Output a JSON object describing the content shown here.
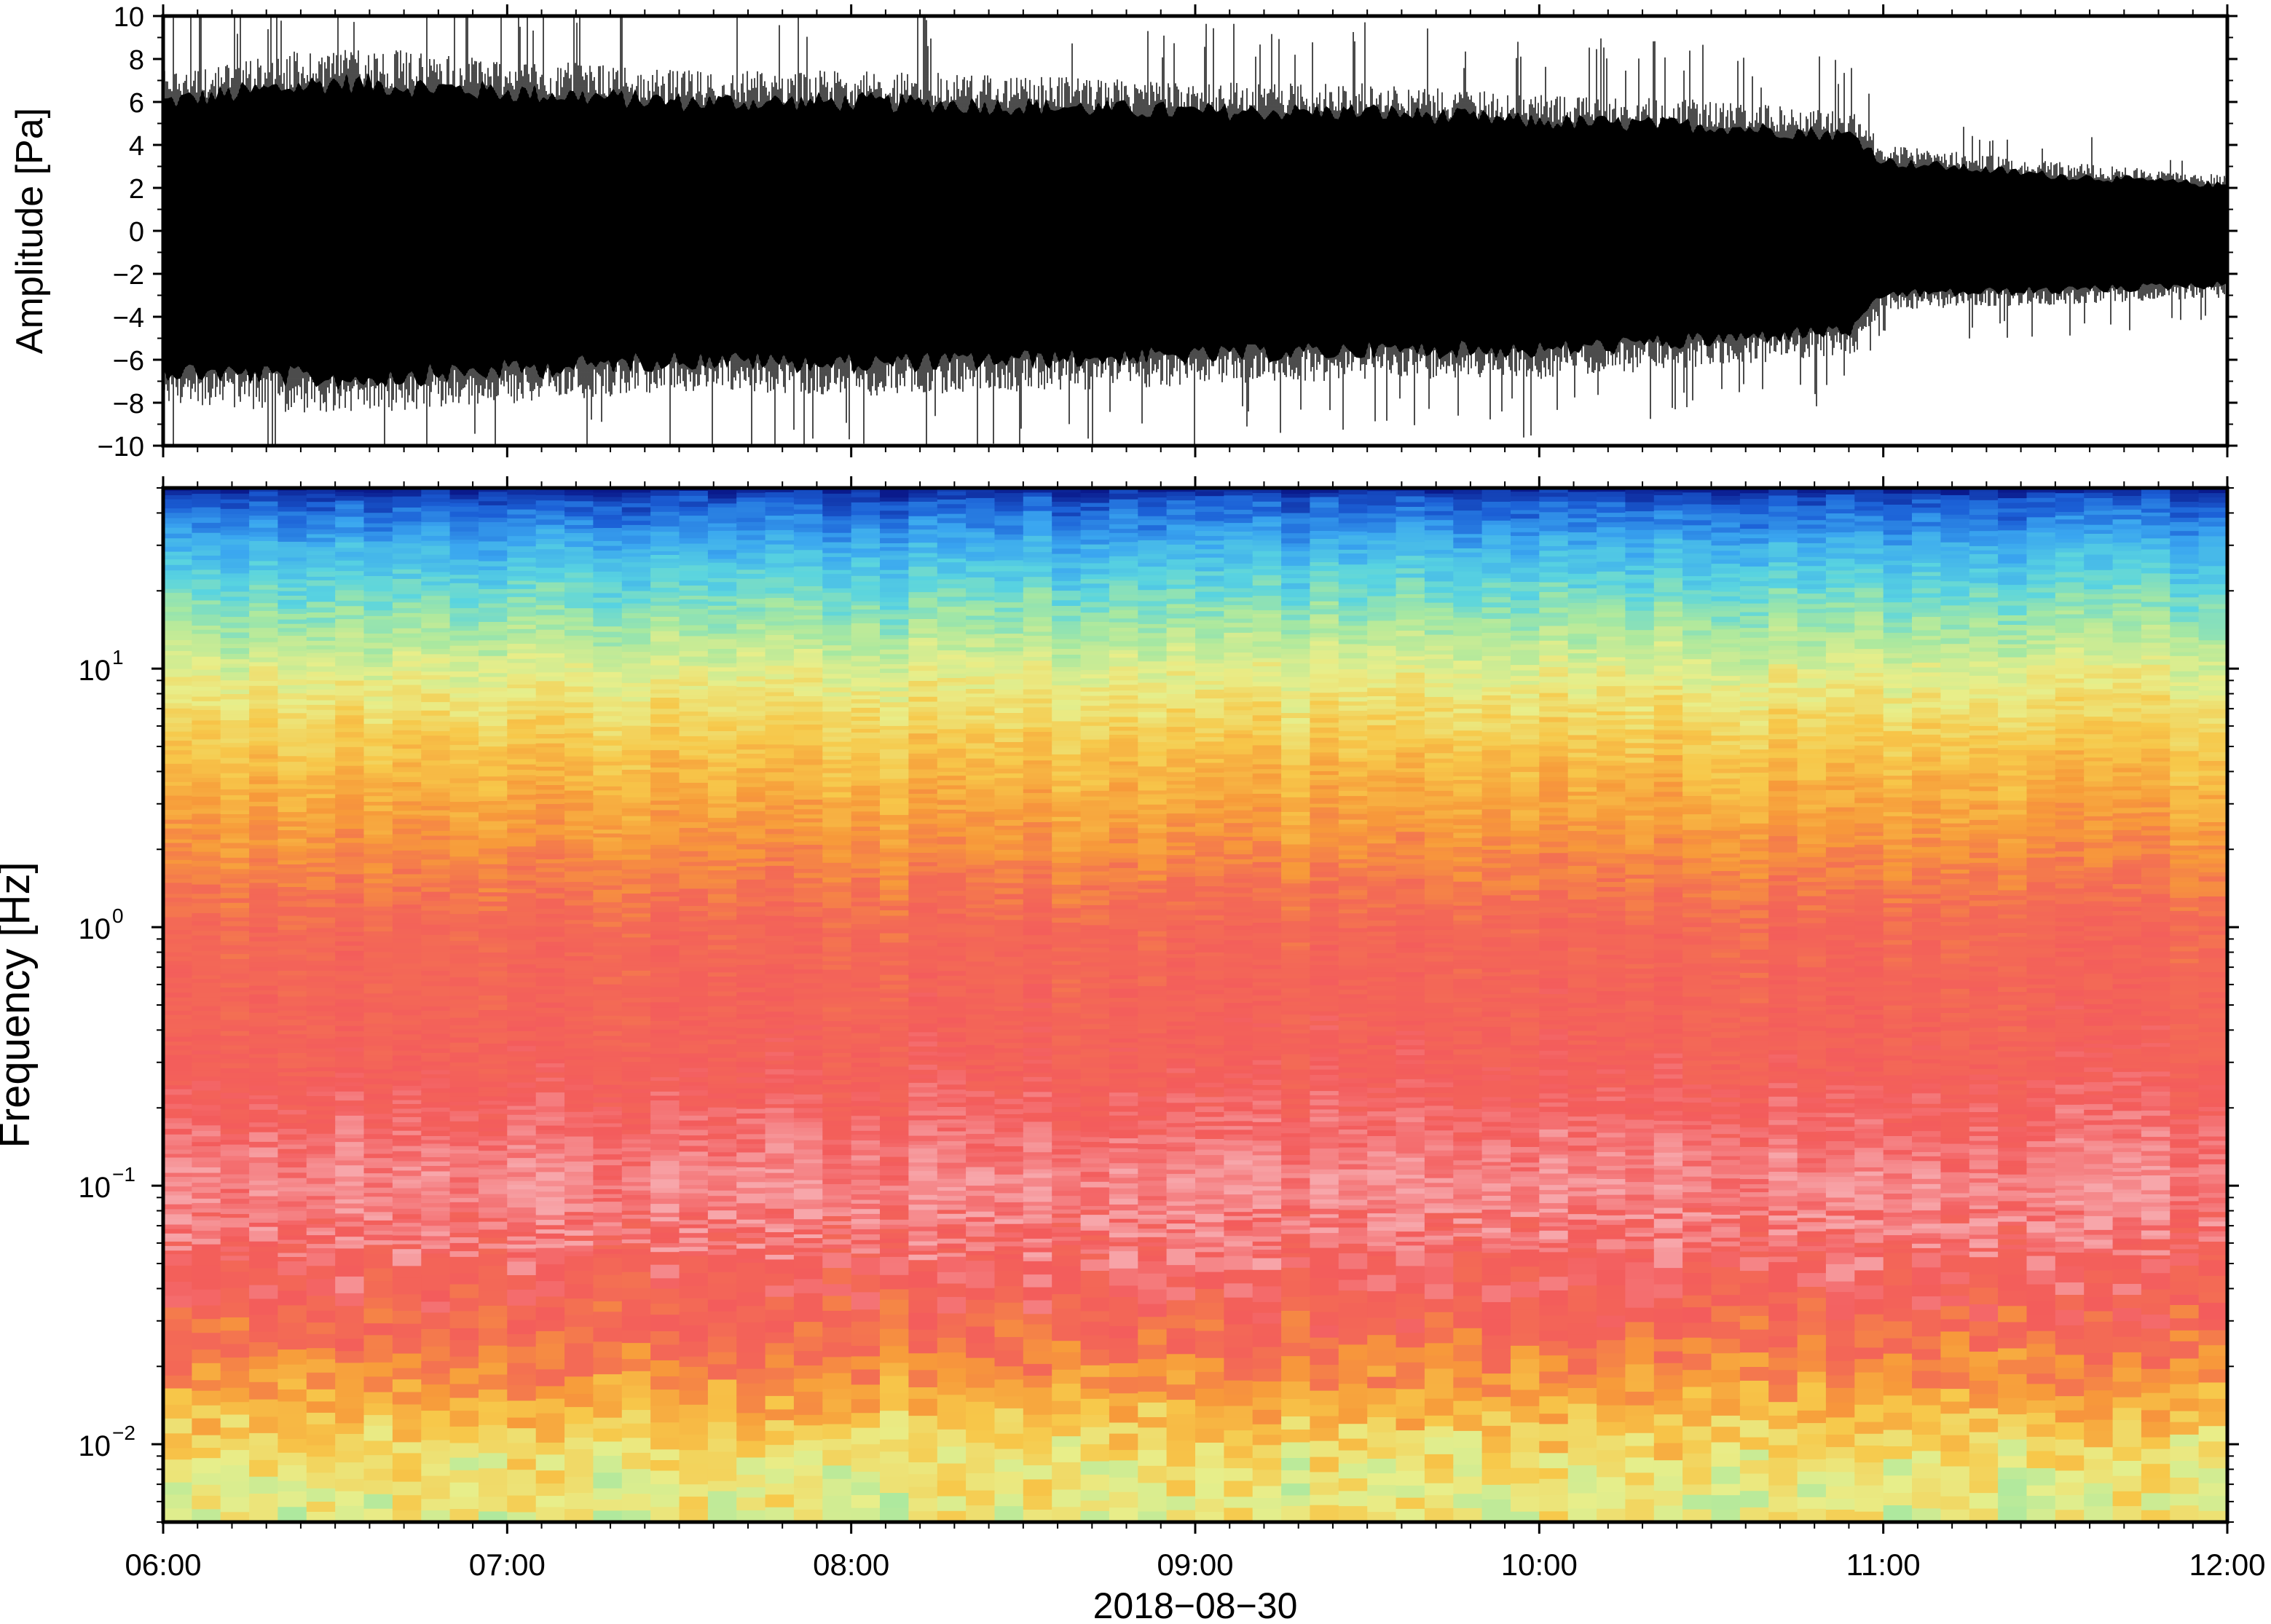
{
  "chart_data": [
    {
      "type": "line",
      "ylabel": "Amplitude [Pa]",
      "xlim": [
        "06:00",
        "12:00"
      ],
      "ylim": [
        -10,
        10
      ],
      "y_ticks": [
        {
          "value": 10,
          "label": "10"
        },
        {
          "value": 8,
          "label": "8"
        },
        {
          "value": 6,
          "label": "6"
        },
        {
          "value": 4,
          "label": "4"
        },
        {
          "value": 2,
          "label": "2"
        },
        {
          "value": 0,
          "label": "0"
        },
        {
          "value": -2,
          "label": "−2"
        },
        {
          "value": -4,
          "label": "−4"
        },
        {
          "value": -6,
          "label": "−6"
        },
        {
          "value": -8,
          "label": "−8"
        },
        {
          "value": -10,
          "label": "−10"
        }
      ],
      "x_ticks": [
        "06:00",
        "07:00",
        "08:00",
        "09:00",
        "10:00",
        "11:00",
        "12:00"
      ],
      "grid": false,
      "line_color": "#000000",
      "envelope": {
        "x": [
          "06:00",
          "06:30",
          "07:00",
          "07:30",
          "08:00",
          "08:30",
          "09:00",
          "09:30",
          "10:00",
          "10:30",
          "10:55",
          "11:00",
          "11:30",
          "12:00"
        ],
        "upper": [
          6.5,
          7.5,
          7.0,
          6.5,
          6.5,
          6.3,
          6.0,
          6.0,
          5.5,
          5.3,
          4.8,
          3.5,
          2.8,
          2.3
        ],
        "lower": [
          -7.0,
          -7.5,
          -7.0,
          -6.5,
          -6.7,
          -6.5,
          -6.3,
          -6.0,
          -6.0,
          -5.5,
          -5.0,
          -3.2,
          -3.0,
          -2.7
        ]
      }
    },
    {
      "type": "heatmap",
      "ylabel": "Frequency [Hz]",
      "xlabel": "2018−08−30",
      "yscale": "log",
      "ylim": [
        0.005,
        50
      ],
      "xlim": [
        "06:00",
        "12:00"
      ],
      "y_ticks": [
        {
          "value": 10,
          "base": "10",
          "exp": "1"
        },
        {
          "value": 1,
          "base": "10",
          "exp": "0"
        },
        {
          "value": 0.1,
          "base": "10",
          "exp": "−1"
        },
        {
          "value": 0.01,
          "base": "10",
          "exp": "−2"
        }
      ],
      "x_ticks": [
        "06:00",
        "07:00",
        "08:00",
        "09:00",
        "10:00",
        "11:00",
        "12:00"
      ],
      "colormap": [
        "#0a1a8c",
        "#1b5fd6",
        "#3aa6f0",
        "#59d4e0",
        "#a8e8a0",
        "#e8ee8a",
        "#f7c84a",
        "#f79a3a",
        "#f36b55",
        "#f35c5c",
        "#f7a6aa"
      ],
      "frequency_profile": {
        "frequency_hz": [
          50,
          45,
          30,
          20,
          10,
          5,
          2,
          1,
          0.3,
          0.1,
          0.05,
          0.03,
          0.02,
          0.012,
          0.008,
          0.005
        ],
        "color_index": [
          0.0,
          0.08,
          0.22,
          0.32,
          0.48,
          0.6,
          0.72,
          0.82,
          0.86,
          0.96,
          0.9,
          0.82,
          0.74,
          0.6,
          0.52,
          0.5
        ]
      }
    }
  ]
}
